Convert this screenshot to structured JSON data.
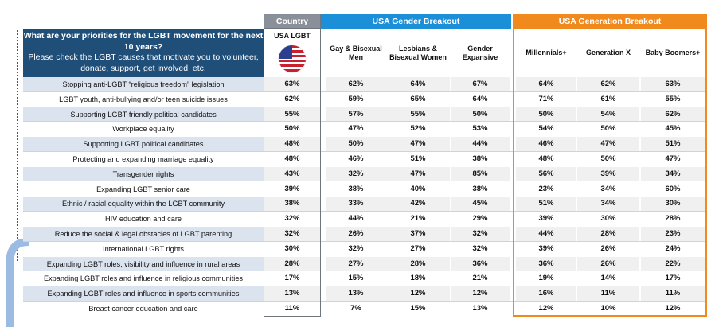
{
  "headers": {
    "country": "Country",
    "gender": "USA Gender Breakout",
    "generation": "USA Generation Breakout"
  },
  "question": {
    "title": "What are your priorities for the LGBT movement for the next 10 years?",
    "subtitle": "Please check the LGBT causes that motivate you to volunteer, donate, support, get involved, etc."
  },
  "columns": {
    "usa": "USA LGBT",
    "gay": "Gay & Bisexual Men",
    "lesbian": "Lesbians & Bisexual Women",
    "gender_exp": "Gender Expansive",
    "millennials": "Millennials+",
    "genx": "Generation X",
    "boomers": "Baby Boomers+"
  },
  "rows": [
    {
      "label": "Stopping anti-LGBT “religious freedom” legislation",
      "usa": "63%",
      "gay": "62%",
      "lesbian": "64%",
      "gender_exp": "67%",
      "millennials": "64%",
      "genx": "62%",
      "boomers": "63%"
    },
    {
      "label": "LGBT youth, anti-bullying and/or teen suicide issues",
      "usa": "62%",
      "gay": "59%",
      "lesbian": "65%",
      "gender_exp": "64%",
      "millennials": "71%",
      "genx": "61%",
      "boomers": "55%"
    },
    {
      "label": "Supporting LGBT-friendly political candidates",
      "usa": "55%",
      "gay": "57%",
      "lesbian": "55%",
      "gender_exp": "50%",
      "millennials": "50%",
      "genx": "54%",
      "boomers": "62%"
    },
    {
      "label": "Workplace equality",
      "usa": "50%",
      "gay": "47%",
      "lesbian": "52%",
      "gender_exp": "53%",
      "millennials": "54%",
      "genx": "50%",
      "boomers": "45%"
    },
    {
      "label": "Supporting LGBT political candidates",
      "usa": "48%",
      "gay": "50%",
      "lesbian": "47%",
      "gender_exp": "44%",
      "millennials": "46%",
      "genx": "47%",
      "boomers": "51%"
    },
    {
      "label": "Protecting and expanding marriage equality",
      "usa": "48%",
      "gay": "46%",
      "lesbian": "51%",
      "gender_exp": "38%",
      "millennials": "48%",
      "genx": "50%",
      "boomers": "47%"
    },
    {
      "label": "Transgender rights",
      "usa": "43%",
      "gay": "32%",
      "lesbian": "47%",
      "gender_exp": "85%",
      "millennials": "56%",
      "genx": "39%",
      "boomers": "34%"
    },
    {
      "label": "Expanding LGBT senior care",
      "usa": "39%",
      "gay": "38%",
      "lesbian": "40%",
      "gender_exp": "38%",
      "millennials": "23%",
      "genx": "34%",
      "boomers": "60%"
    },
    {
      "label": "Ethnic / racial equality within the LGBT community",
      "usa": "38%",
      "gay": "33%",
      "lesbian": "42%",
      "gender_exp": "45%",
      "millennials": "51%",
      "genx": "34%",
      "boomers": "30%"
    },
    {
      "label": "HIV education and care",
      "usa": "32%",
      "gay": "44%",
      "lesbian": "21%",
      "gender_exp": "29%",
      "millennials": "39%",
      "genx": "30%",
      "boomers": "28%"
    },
    {
      "label": "Reduce the social & legal obstacles of LGBT parenting",
      "usa": "32%",
      "gay": "26%",
      "lesbian": "37%",
      "gender_exp": "32%",
      "millennials": "44%",
      "genx": "28%",
      "boomers": "23%"
    },
    {
      "label": "International LGBT rights",
      "usa": "30%",
      "gay": "32%",
      "lesbian": "27%",
      "gender_exp": "32%",
      "millennials": "39%",
      "genx": "26%",
      "boomers": "24%"
    },
    {
      "label": "Expanding LGBT roles, visibility and influence in rural areas",
      "usa": "28%",
      "gay": "27%",
      "lesbian": "28%",
      "gender_exp": "36%",
      "millennials": "36%",
      "genx": "26%",
      "boomers": "22%"
    },
    {
      "label": "Expanding LGBT roles and influence in religious communities",
      "usa": "17%",
      "gay": "15%",
      "lesbian": "18%",
      "gender_exp": "21%",
      "millennials": "19%",
      "genx": "14%",
      "boomers": "17%"
    },
    {
      "label": "Expanding LGBT roles and influence in sports communities",
      "usa": "13%",
      "gay": "13%",
      "lesbian": "12%",
      "gender_exp": "12%",
      "millennials": "16%",
      "genx": "11%",
      "boomers": "11%"
    },
    {
      "label": "Breast cancer education and care",
      "usa": "11%",
      "gay": "7%",
      "lesbian": "15%",
      "gender_exp": "13%",
      "millennials": "12%",
      "genx": "10%",
      "boomers": "12%"
    }
  ],
  "colors": {
    "country_header": "#8a9099",
    "gender_header": "#1b8fd8",
    "generation_header": "#f08a1d",
    "question_bg": "#1f4e79",
    "row_shade": "#dbe3ef"
  }
}
